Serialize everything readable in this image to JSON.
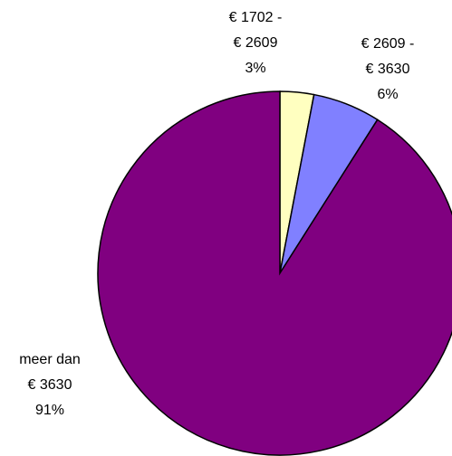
{
  "chart_data": {
    "type": "pie",
    "categories": [
      [
        "€ 1702  -",
        "€ 2609"
      ],
      [
        "€ 2609 -",
        "€ 3630"
      ],
      [
        "meer dan",
        "€ 3630"
      ]
    ],
    "values": [
      3,
      6,
      91
    ],
    "value_labels": [
      "3%",
      "6%",
      "91%"
    ],
    "colors": [
      "#ffffc0",
      "#8080ff",
      "#800080"
    ]
  }
}
